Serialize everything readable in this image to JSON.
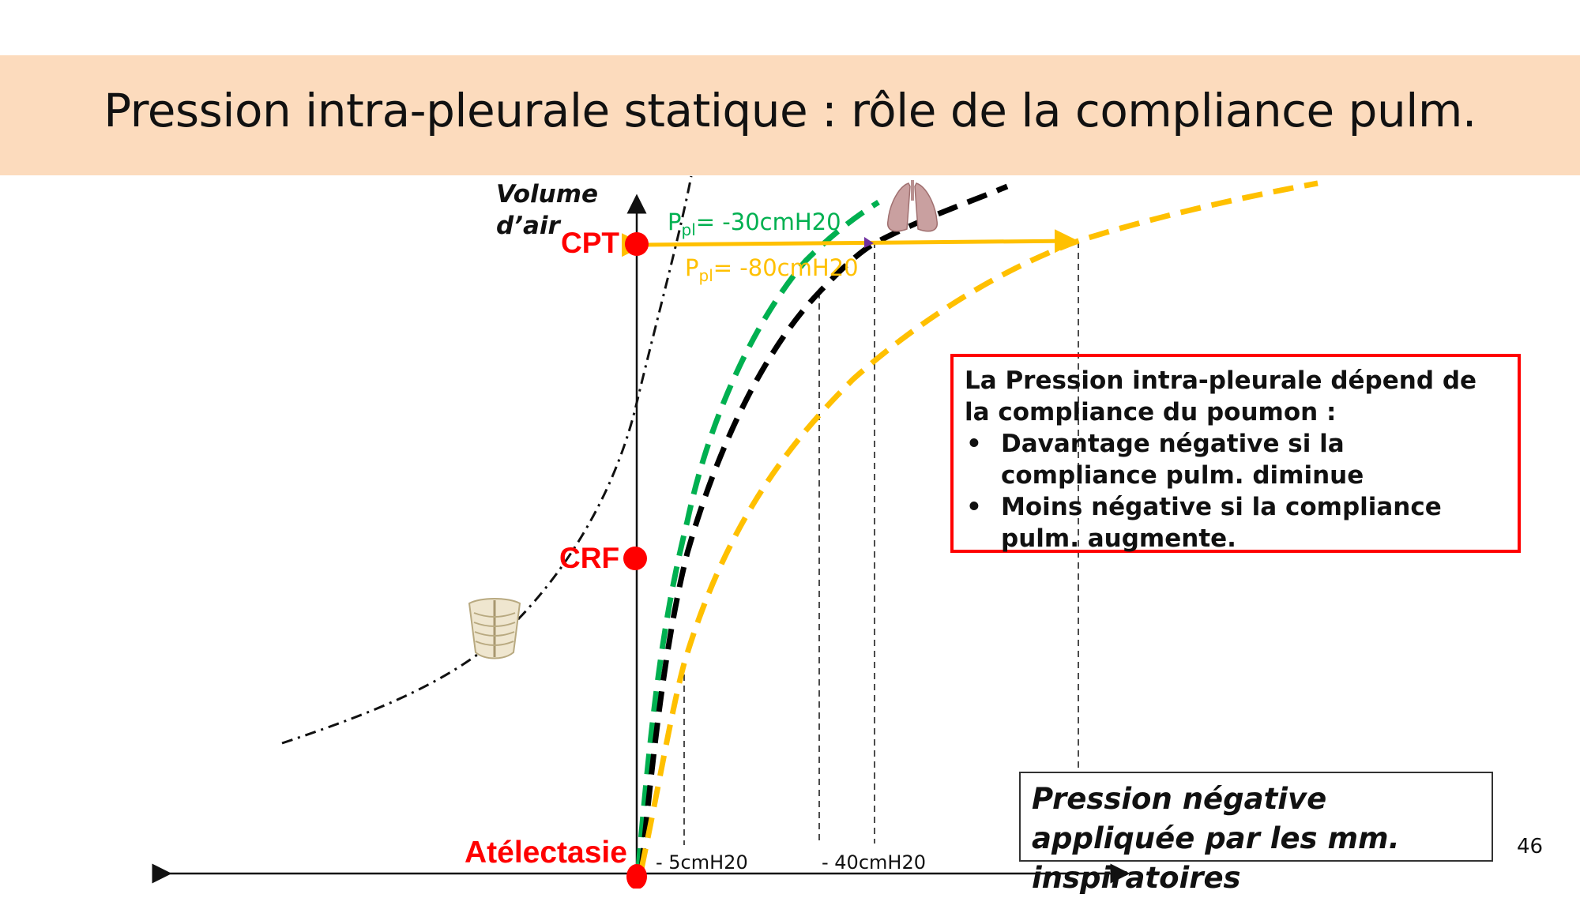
{
  "title": "Pression intra-pleurale statique : rôle de la compliance pulm.",
  "axis": {
    "y_label_line1": "Volume",
    "y_label_line2": "d’air"
  },
  "points": {
    "cpt": "CPT",
    "crf": "CRF",
    "atelectasie": "Atélectasie"
  },
  "pressure_labels": {
    "green": {
      "prefix": "P",
      "sub": "pl",
      "value": "= -30cmH20"
    },
    "orange": {
      "prefix": "P",
      "sub": "pl",
      "value": "= -80cmH20"
    }
  },
  "ticks": {
    "t1": "- 5cmH20",
    "t2": "- 40cmH20"
  },
  "info_box": {
    "intro": "La Pression intra-pleurale dépend de la compliance du poumon :",
    "bullets": [
      "Davantage négative si la compliance pulm. diminue",
      "Moins négative si la compliance pulm. augmente."
    ]
  },
  "pressure_box": "Pression négative appliquée par les mm. inspiratoires",
  "page_number": "46",
  "colors": {
    "header_bg": "#fcdbbd",
    "green_curve": "#00b050",
    "orange_curve": "#ffc000",
    "black_curve": "#000000",
    "points": "#ff0000"
  },
  "icons": [
    "lungs-icon",
    "ribcage-icon"
  ]
}
